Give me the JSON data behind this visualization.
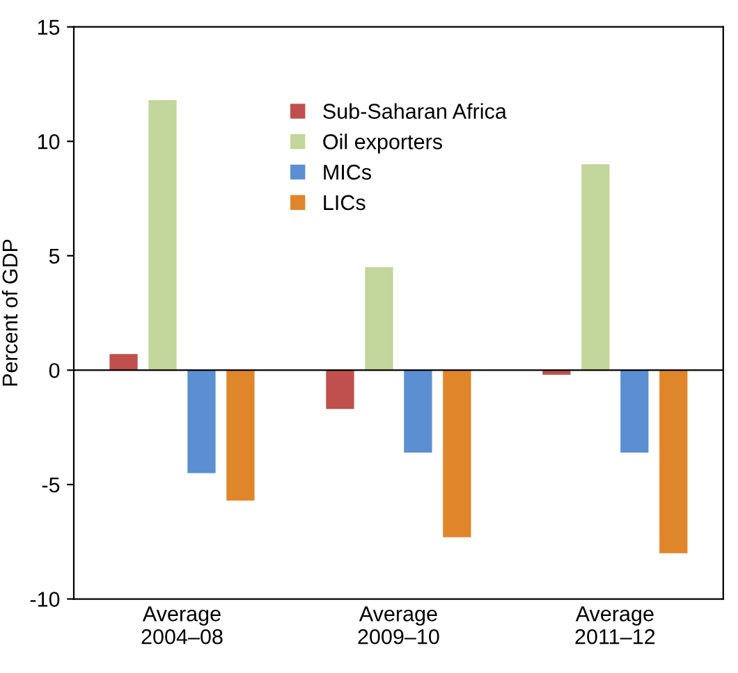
{
  "chart_data": {
    "type": "bar",
    "ylabel": "Percent of GDP",
    "categories": [
      "Average\n2004–08",
      "Average\n2009–10",
      "Average\n2011–12"
    ],
    "series": [
      {
        "name": "Sub-Saharan Africa",
        "color": "#c0504d",
        "values": [
          0.7,
          -1.7,
          -0.2
        ]
      },
      {
        "name": "Oil exporters",
        "color": "#c3d69b",
        "values": [
          11.8,
          4.5,
          9.0
        ]
      },
      {
        "name": "MICs",
        "color": "#5b8fd2",
        "values": [
          -4.5,
          -3.6,
          -3.6
        ]
      },
      {
        "name": "LICs",
        "color": "#e0862a",
        "values": [
          -5.7,
          -7.3,
          -8.0
        ]
      }
    ],
    "ylim": [
      -10,
      15
    ],
    "yticks": [
      {
        "value": -10,
        "label": "-10"
      },
      {
        "value": -5,
        "label": "-5"
      },
      0,
      5,
      10,
      15
    ],
    "ref_lines": [
      {
        "axis": "y",
        "value": 0,
        "color": "#000000"
      }
    ],
    "grid": false,
    "legend": "top"
  }
}
